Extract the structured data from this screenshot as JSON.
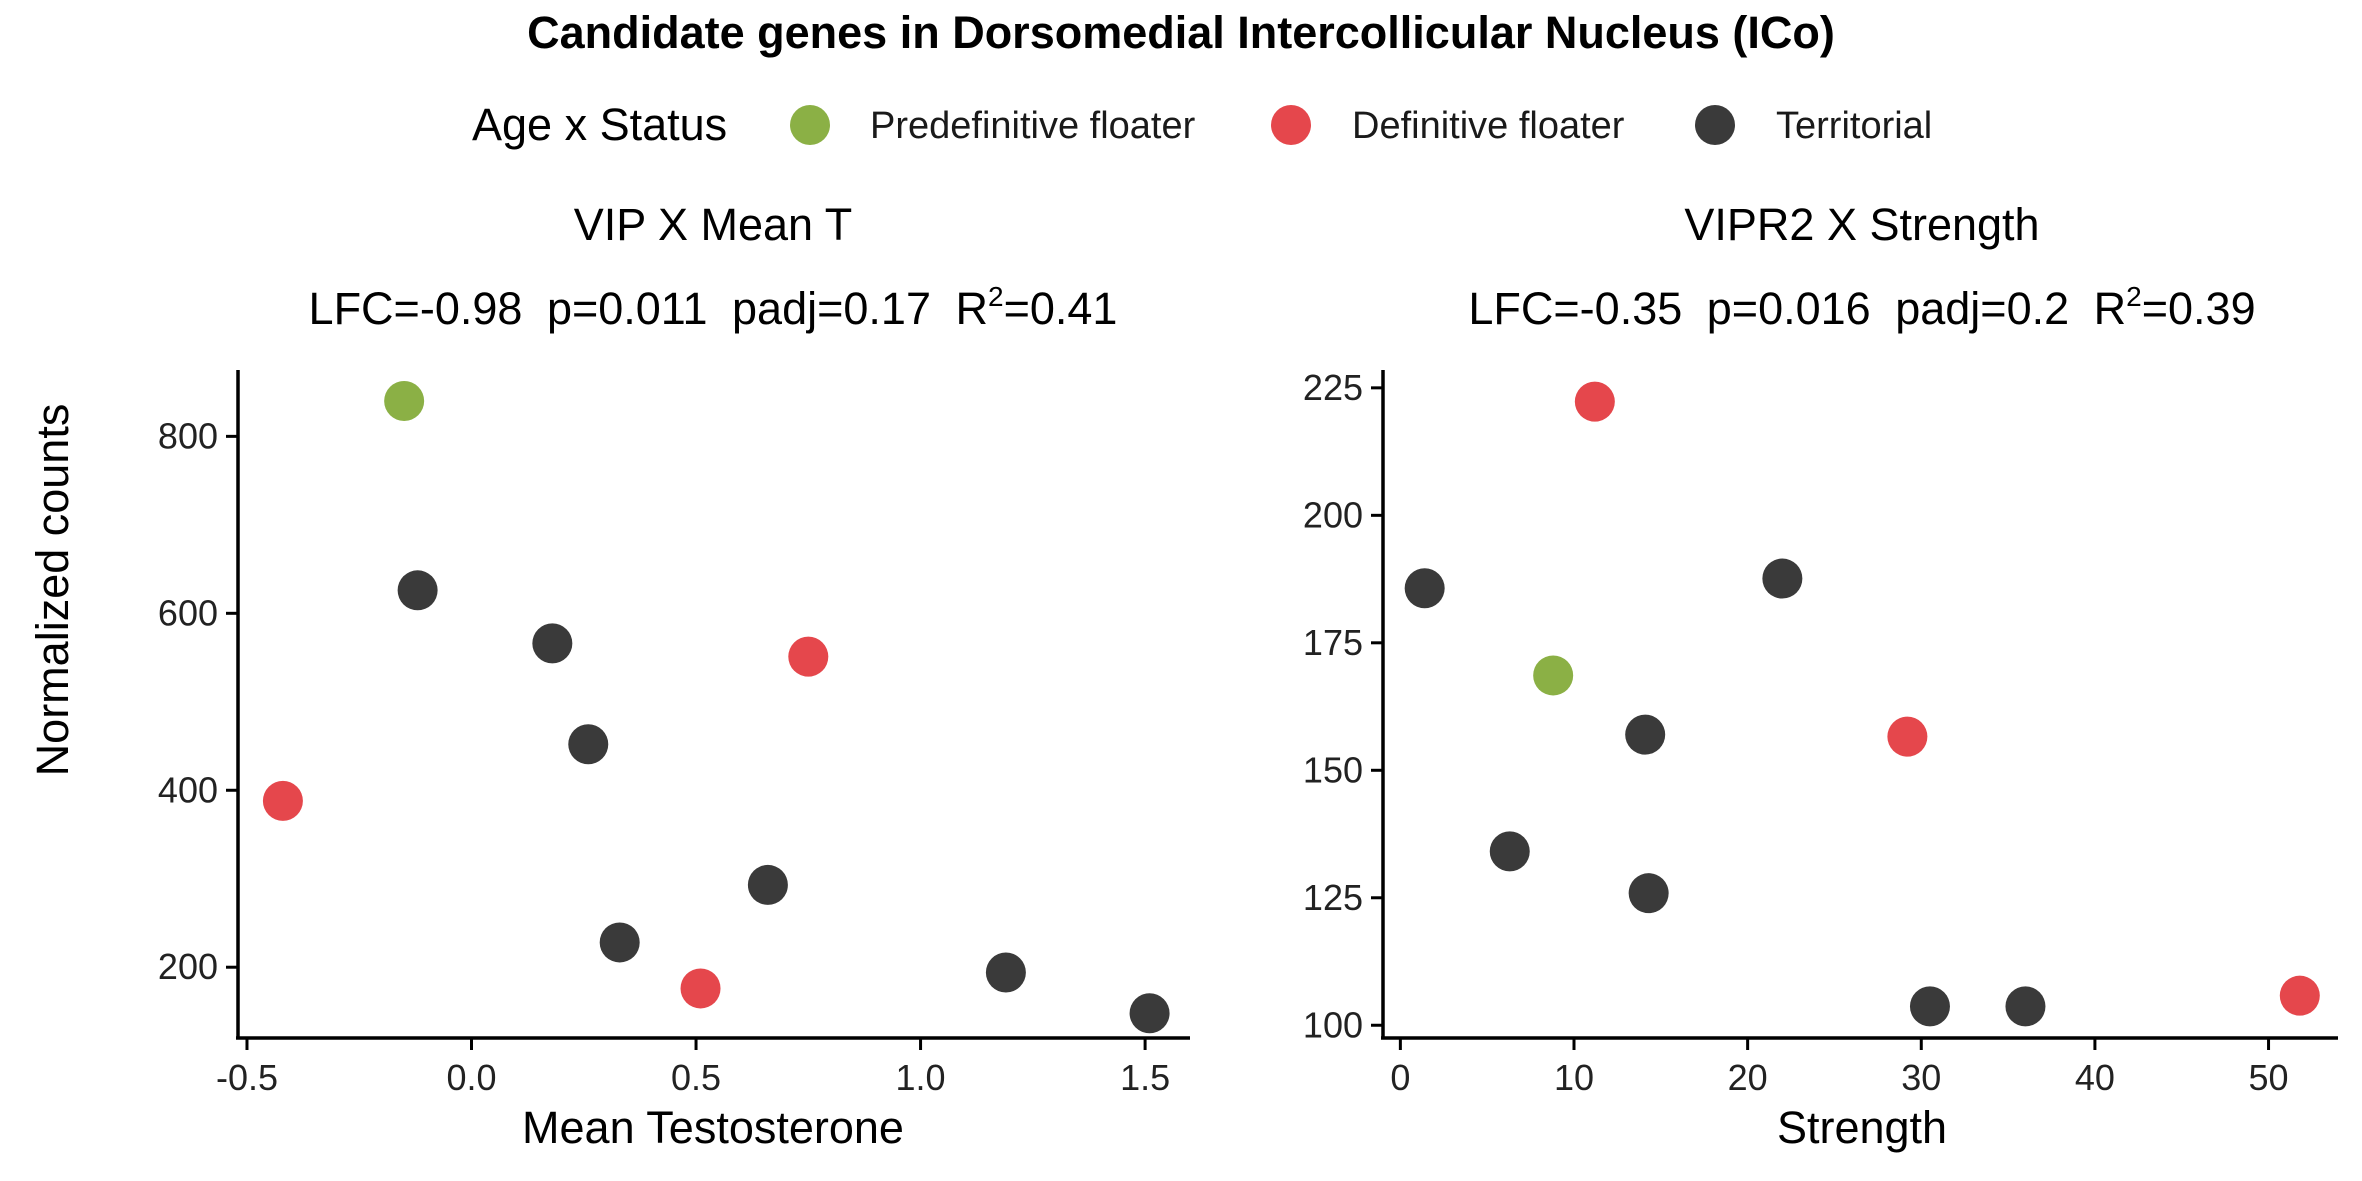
{
  "title": "Candidate genes in Dorsomedial Intercollicular Nucleus (ICo)",
  "legend": {
    "title": "Age x Status",
    "items": [
      {
        "key": "predef",
        "label": "Predefinitive floater",
        "color": "#8BB045"
      },
      {
        "key": "def",
        "label": "Definitive floater",
        "color": "#E5474C"
      },
      {
        "key": "terr",
        "label": "Territorial",
        "color": "#3A3A3A"
      }
    ]
  },
  "chart_data": [
    {
      "type": "scatter",
      "title": "VIP X Mean T",
      "stats": {
        "lfc": "LFC=-0.98",
        "p": "p=0.011",
        "padj": "padj=0.17",
        "r_prefix": "R",
        "r_sup": "2",
        "r_value": "=0.41"
      },
      "xlabel": "Mean Testosterone",
      "ylabel": "Normalized counts",
      "xlim": [
        -0.52,
        1.6
      ],
      "ylim": [
        120,
        875
      ],
      "xticks": [
        -0.5,
        0.0,
        0.5,
        1.0,
        1.5
      ],
      "xtick_labels": [
        "-0.5",
        "0.0",
        "0.5",
        "1.0",
        "1.5"
      ],
      "yticks": [
        200,
        400,
        600,
        800
      ],
      "ytick_labels": [
        "200",
        "400",
        "600",
        "800"
      ],
      "points": [
        {
          "x": -0.15,
          "y": 840,
          "group": "predef"
        },
        {
          "x": -0.12,
          "y": 626,
          "group": "terr"
        },
        {
          "x": 0.18,
          "y": 566,
          "group": "terr"
        },
        {
          "x": 0.75,
          "y": 551,
          "group": "def"
        },
        {
          "x": 0.26,
          "y": 452,
          "group": "terr"
        },
        {
          "x": -0.42,
          "y": 388,
          "group": "def"
        },
        {
          "x": 0.66,
          "y": 293,
          "group": "terr"
        },
        {
          "x": 0.33,
          "y": 228,
          "group": "terr"
        },
        {
          "x": 0.51,
          "y": 176,
          "group": "def"
        },
        {
          "x": 1.19,
          "y": 194,
          "group": "terr"
        },
        {
          "x": 1.51,
          "y": 148,
          "group": "terr"
        }
      ]
    },
    {
      "type": "scatter",
      "title": "VIPR2 X Strength",
      "stats": {
        "lfc": "LFC=-0.35",
        "p": "p=0.016",
        "padj": "padj=0.2",
        "r_prefix": "R",
        "r_sup": "2",
        "r_value": "=0.39"
      },
      "xlabel": "Strength",
      "ylabel": "",
      "xlim": [
        -1,
        54
      ],
      "ylim": [
        97.5,
        228.5
      ],
      "xticks": [
        0,
        10,
        20,
        30,
        40,
        50
      ],
      "xtick_labels": [
        "0",
        "10",
        "20",
        "30",
        "40",
        "50"
      ],
      "yticks": [
        100,
        125,
        150,
        175,
        200,
        225
      ],
      "ytick_labels": [
        "100",
        "125",
        "150",
        "175",
        "200",
        "225"
      ],
      "points": [
        {
          "x": 11.2,
          "y": 222.3,
          "group": "def"
        },
        {
          "x": 1.4,
          "y": 185.7,
          "group": "terr"
        },
        {
          "x": 22.0,
          "y": 187.6,
          "group": "terr"
        },
        {
          "x": 8.8,
          "y": 168.6,
          "group": "predef"
        },
        {
          "x": 14.1,
          "y": 157.0,
          "group": "terr"
        },
        {
          "x": 29.2,
          "y": 156.6,
          "group": "def"
        },
        {
          "x": 6.3,
          "y": 134.1,
          "group": "terr"
        },
        {
          "x": 14.3,
          "y": 125.9,
          "group": "terr"
        },
        {
          "x": 30.5,
          "y": 103.7,
          "group": "terr"
        },
        {
          "x": 36.0,
          "y": 103.7,
          "group": "terr"
        },
        {
          "x": 51.8,
          "y": 105.8,
          "group": "def"
        }
      ]
    }
  ]
}
